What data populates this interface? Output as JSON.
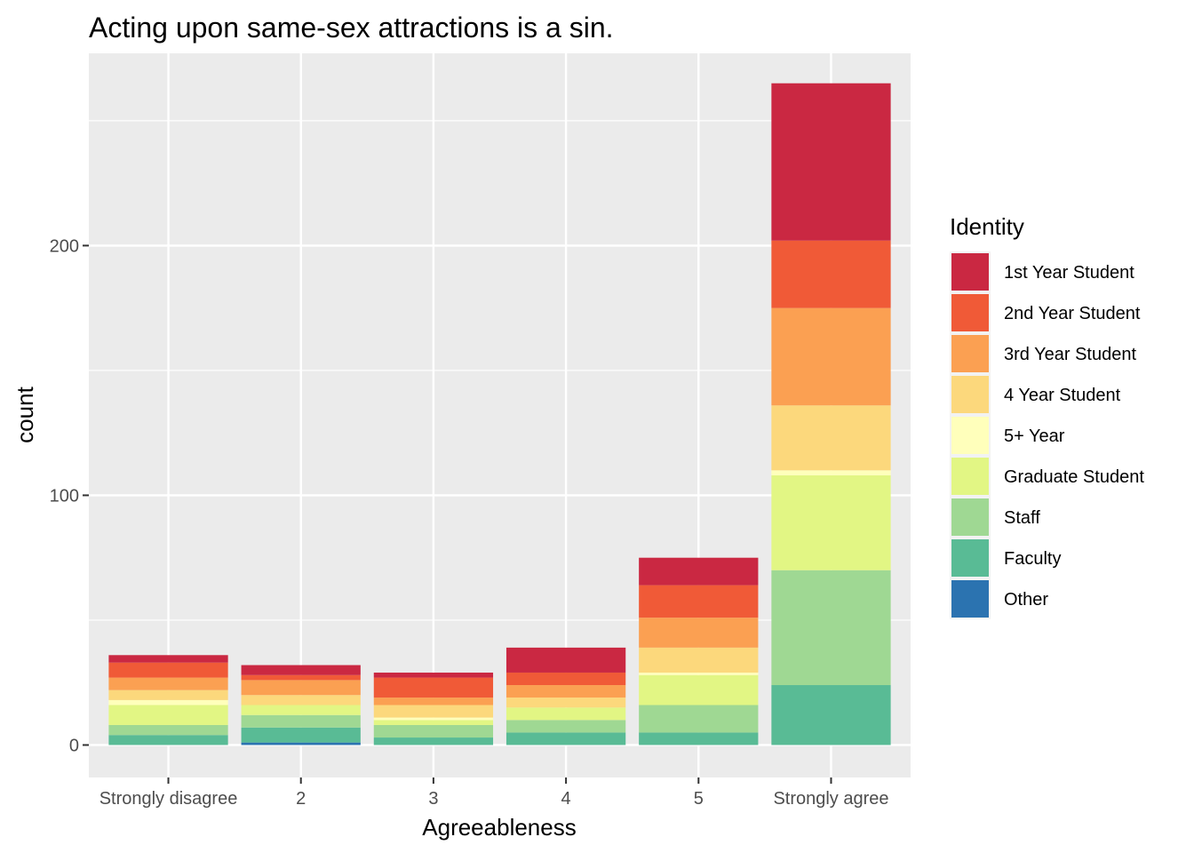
{
  "chart_data": {
    "type": "bar",
    "stacked": true,
    "title": "Acting upon same-sex attractions is a sin.",
    "xlabel": "Agreeableness",
    "ylabel": "count",
    "categories": [
      "Strongly disagree",
      "2",
      "3",
      "4",
      "5",
      "Strongly agree"
    ],
    "ylim": [
      -13,
      277
    ],
    "yticks": [
      0,
      100,
      200
    ],
    "grid": true,
    "legend": {
      "title": "Identity",
      "position": "right"
    },
    "series": [
      {
        "name": "Other",
        "color": "#2B73B0",
        "values": [
          0,
          1,
          0,
          0,
          0,
          0
        ]
      },
      {
        "name": "Faculty",
        "color": "#59BB95",
        "values": [
          4,
          6,
          3,
          5,
          5,
          24
        ]
      },
      {
        "name": "Staff",
        "color": "#9FD893",
        "values": [
          4,
          5,
          5,
          5,
          11,
          46
        ]
      },
      {
        "name": "Graduate Student",
        "color": "#E2F684",
        "values": [
          8,
          4,
          2,
          5,
          12,
          38
        ]
      },
      {
        "name": "5+ Year",
        "color": "#FFFFBB",
        "values": [
          2,
          0,
          1,
          0,
          1,
          2
        ]
      },
      {
        "name": "4 Year Student",
        "color": "#FCD87C",
        "values": [
          4,
          4,
          5,
          4,
          10,
          26
        ]
      },
      {
        "name": "3rd Year Student",
        "color": "#FBA052",
        "values": [
          5,
          6,
          3,
          5,
          12,
          39
        ]
      },
      {
        "name": "2nd Year Student",
        "color": "#F05A37",
        "values": [
          6,
          2,
          8,
          5,
          13,
          27
        ]
      },
      {
        "name": "1st Year Student",
        "color": "#CA2842",
        "values": [
          3,
          4,
          2,
          10,
          11,
          63
        ]
      }
    ]
  }
}
